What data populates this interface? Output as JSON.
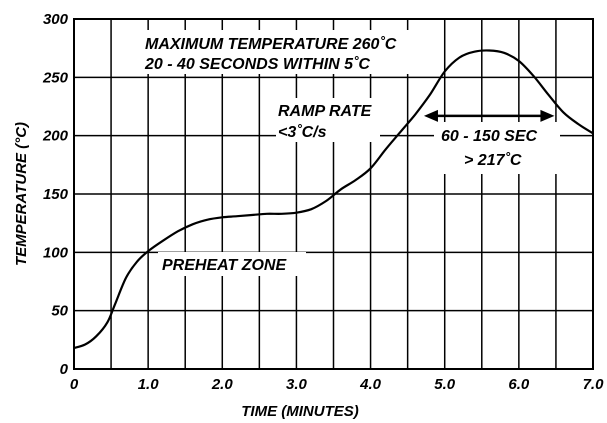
{
  "chart_data": {
    "type": "line",
    "title": "",
    "xlabel": "TIME (MINUTES)",
    "ylabel": "TEMPERATURE (°C)",
    "xlim": [
      0,
      7.0
    ],
    "ylim": [
      0,
      300
    ],
    "x_ticks": [
      "0",
      "1.0",
      "2.0",
      "3.0",
      "4.0",
      "5.0",
      "6.0",
      "7.0"
    ],
    "y_ticks": [
      "0",
      "50",
      "100",
      "150",
      "200",
      "250",
      "300"
    ],
    "x_grid": [
      0,
      0.5,
      1.0,
      1.5,
      2.0,
      2.5,
      3.0,
      3.5,
      4.0,
      4.5,
      5.0,
      5.5,
      6.0,
      6.5,
      7.0
    ],
    "y_grid": [
      0,
      50,
      100,
      150,
      200,
      250,
      300
    ],
    "grid": true,
    "series": [
      {
        "x": [
          0,
          0.15,
          0.3,
          0.45,
          0.55,
          0.7,
          0.85,
          1.0,
          1.2,
          1.4,
          1.6,
          1.8,
          2.0,
          2.2,
          2.4,
          2.6,
          2.8,
          3.0,
          3.2,
          3.4,
          3.6,
          3.8,
          4.0,
          4.2,
          4.4,
          4.6,
          4.8,
          5.0,
          5.2,
          5.4,
          5.6,
          5.8,
          6.0,
          6.2,
          6.4,
          6.6,
          6.8,
          7.0
        ],
        "y": [
          18,
          21,
          28,
          40,
          55,
          78,
          92,
          101,
          110,
          118,
          124,
          128,
          130,
          131,
          132,
          133,
          133,
          134,
          137,
          144,
          154,
          162,
          172,
          188,
          203,
          218,
          235,
          255,
          267,
          272,
          273,
          271,
          264,
          251,
          235,
          220,
          210,
          202
        ]
      }
    ],
    "annotations": {
      "max_temp_line1": "MAXIMUM TEMPERATURE 260˚C",
      "max_temp_line2": "20 - 40 SECONDS WITHIN 5˚C",
      "ramp_line1": "RAMP RATE",
      "ramp_line2": "<3˚C/s",
      "tal_line1": "60 - 150 SEC",
      "tal_line2": "> 217˚C",
      "preheat": "PREHEAT ZONE"
    },
    "tal_arrow_x": [
      4.72,
      6.48
    ],
    "tal_arrow_y": 217
  }
}
